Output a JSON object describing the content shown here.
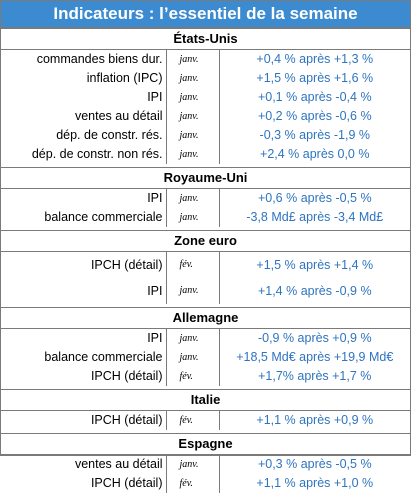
{
  "title": "Indicateurs : l’essentiel de la semaine",
  "sections": [
    {
      "name": "États-Unis",
      "rows": [
        {
          "label": "commandes biens dur.",
          "month": "janv.",
          "value": "+0,4 % après +1,3 %"
        },
        {
          "label": "inflation (IPC)",
          "month": "janv.",
          "value": "+1,5 % après +1,6 %"
        },
        {
          "label": "IPI",
          "month": "janv.",
          "value": "+0,1 % après -0,4 %"
        },
        {
          "label": "ventes au détail",
          "month": "janv.",
          "value": "+0,2 % après -0,6 %"
        },
        {
          "label": "dép. de constr. rés.",
          "month": "janv.",
          "value": "-0,3 % après -1,9 %"
        },
        {
          "label": "dép. de constr. non rés.",
          "month": "janv.",
          "value": "+2,4 % après 0,0 %"
        }
      ]
    },
    {
      "name": "Royaume-Uni",
      "rows": [
        {
          "label": "IPI",
          "month": "janv.",
          "value": "+0,6 % après -0,5 %"
        },
        {
          "label": "balance commerciale",
          "month": "janv.",
          "value": "-3,8 Md£ après -3,4 Md£"
        }
      ]
    },
    {
      "name": "Zone euro",
      "rows": [
        {
          "label": "IPCH (détail)",
          "month": "fév.",
          "value": "+1,5 % après +1,4 %"
        },
        {
          "label": "IPI",
          "month": "janv.",
          "value": "+1,4 % après -0,9 %"
        }
      ]
    },
    {
      "name": "Allemagne",
      "rows": [
        {
          "label": "IPI",
          "month": "janv.",
          "value": "-0,9 % après +0,9 %"
        },
        {
          "label": "balance commerciale",
          "month": "janv.",
          "value": "+18,5 Md€ après +19,9 Md€"
        },
        {
          "label": "IPCH (détail)",
          "month": "fév.",
          "value": "+1,7% après +1,7 %"
        }
      ]
    },
    {
      "name": "Italie",
      "rows": [
        {
          "label": "IPCH (détail)",
          "month": "fév.",
          "value": "+1,1 % après +0,9 %"
        }
      ]
    },
    {
      "name": "Espagne",
      "rows": [
        {
          "label": "ventes au détail",
          "month": "janv.",
          "value": "+0,3 % après -0,5 %"
        },
        {
          "label": "IPCH (détail)",
          "month": "fév.",
          "value": "+1,1 % après +1,0 %"
        }
      ]
    }
  ]
}
